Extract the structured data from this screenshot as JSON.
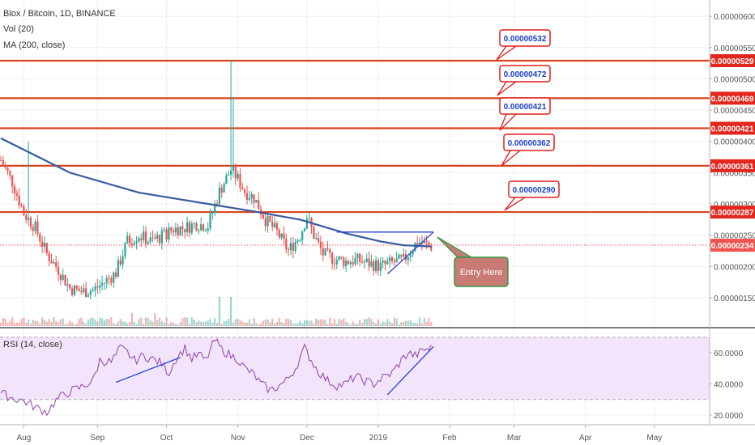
{
  "header": {
    "title": "Blox / Bitcoin, 1D, BINANCE",
    "vol_label": "Vol (20)",
    "ma_label": "MA (200, close)"
  },
  "rsi": {
    "label": "RSI (14, close)",
    "ticks": [
      "60.0000",
      "40.0000",
      "20.0000"
    ],
    "tick_values": [
      60,
      40,
      20
    ],
    "band_upper": 70,
    "band_lower": 30,
    "range": [
      17,
      75
    ]
  },
  "annotations": {
    "entry_label": "Entry Here",
    "callouts": [
      "0.00000532",
      "0.00000472",
      "0.00000421",
      "0.00000362",
      "0.00000290"
    ],
    "callout_values": [
      532,
      472,
      421,
      362,
      290
    ]
  },
  "price_axis": {
    "ticks": [
      "0.00000600",
      "0.00000550",
      "0.00000500",
      "0.00000450",
      "0.00000400",
      "0.00000350",
      "0.00000300",
      "0.00000250",
      "0.00000200",
      "0.00000150"
    ],
    "tick_values": [
      600,
      550,
      500,
      450,
      400,
      350,
      300,
      250,
      200,
      150
    ],
    "current_label": "0.00000234",
    "current_value": 234
  },
  "levels": {
    "labels": [
      "0.00000529",
      "0.00000469",
      "0.00000421",
      "0.00000361",
      "0.00000287"
    ],
    "values": [
      529,
      469,
      421,
      361,
      287
    ]
  },
  "time_axis": {
    "labels": [
      "Aug",
      "Sep",
      "Oct",
      "Nov",
      "Dec",
      "2019",
      "Feb",
      "Mar",
      "Apr",
      "May"
    ],
    "days": [
      10,
      42,
      72,
      103,
      133,
      164,
      195,
      223,
      254,
      284
    ]
  },
  "colors": {
    "up": "#26a69a",
    "down": "#ef5350",
    "ma": "#3a5aa0",
    "level": "#d9441f",
    "rsi_line": "#8e44ad",
    "rsi_band": "#f1e4fb",
    "trend": "#2a3fd6",
    "entry_box": "#c97a74",
    "entry_border": "#2e9b42",
    "callout_border": "#e21b1b"
  },
  "chart_data": {
    "type": "candlestick",
    "price_unit": "1e-8 BTC",
    "ylim": [
      130,
      620
    ],
    "x_unit": "days since Jul 1 2018",
    "xlim": [
      0,
      305
    ],
    "grid": true,
    "ma200": [
      [
        0,
        405
      ],
      [
        30,
        350
      ],
      [
        60,
        318
      ],
      [
        90,
        300
      ],
      [
        110,
        288
      ],
      [
        130,
        275
      ],
      [
        150,
        253
      ],
      [
        165,
        240
      ],
      [
        175,
        234
      ],
      [
        187,
        232
      ]
    ],
    "ohlc_keypoints": [
      [
        0,
        370
      ],
      [
        5,
        335
      ],
      [
        10,
        285
      ],
      [
        15,
        262
      ],
      [
        20,
        220
      ],
      [
        25,
        195
      ],
      [
        30,
        165
      ],
      [
        35,
        160
      ],
      [
        40,
        162
      ],
      [
        45,
        175
      ],
      [
        50,
        190
      ],
      [
        55,
        240
      ],
      [
        60,
        250
      ],
      [
        65,
        240
      ],
      [
        70,
        248
      ],
      [
        75,
        260
      ],
      [
        80,
        262
      ],
      [
        85,
        268
      ],
      [
        90,
        265
      ],
      [
        95,
        320
      ],
      [
        100,
        355
      ],
      [
        103,
        340
      ],
      [
        106,
        320
      ],
      [
        110,
        310
      ],
      [
        115,
        275
      ],
      [
        120,
        255
      ],
      [
        125,
        225
      ],
      [
        130,
        250
      ],
      [
        133,
        280
      ],
      [
        136,
        250
      ],
      [
        140,
        220
      ],
      [
        145,
        212
      ],
      [
        150,
        208
      ],
      [
        155,
        210
      ],
      [
        160,
        205
      ],
      [
        165,
        200
      ],
      [
        170,
        206
      ],
      [
        175,
        210
      ],
      [
        178,
        225
      ],
      [
        181,
        240
      ],
      [
        184,
        236
      ],
      [
        187,
        232
      ]
    ],
    "rsi_keypoints": [
      [
        0,
        34
      ],
      [
        5,
        31
      ],
      [
        10,
        29
      ],
      [
        15,
        25
      ],
      [
        20,
        22
      ],
      [
        25,
        31
      ],
      [
        30,
        35
      ],
      [
        35,
        38
      ],
      [
        40,
        42
      ],
      [
        43,
        55
      ],
      [
        48,
        54
      ],
      [
        52,
        63
      ],
      [
        55,
        60
      ],
      [
        58,
        55
      ],
      [
        62,
        58
      ],
      [
        66,
        56
      ],
      [
        70,
        53
      ],
      [
        73,
        47
      ],
      [
        76,
        56
      ],
      [
        80,
        63
      ],
      [
        83,
        56
      ],
      [
        86,
        59
      ],
      [
        89,
        55
      ],
      [
        93,
        68
      ],
      [
        96,
        62
      ],
      [
        100,
        58
      ],
      [
        103,
        56
      ],
      [
        106,
        50
      ],
      [
        110,
        46
      ],
      [
        113,
        40
      ],
      [
        117,
        36
      ],
      [
        120,
        38
      ],
      [
        124,
        42
      ],
      [
        128,
        50
      ],
      [
        132,
        63
      ],
      [
        135,
        55
      ],
      [
        138,
        48
      ],
      [
        142,
        42
      ],
      [
        146,
        39
      ],
      [
        150,
        40
      ],
      [
        154,
        45
      ],
      [
        158,
        42
      ],
      [
        162,
        40
      ],
      [
        166,
        44
      ],
      [
        170,
        47
      ],
      [
        174,
        55
      ],
      [
        177,
        60
      ],
      [
        180,
        58
      ],
      [
        184,
        62
      ],
      [
        187,
        63
      ]
    ],
    "trendlines": [
      {
        "pane": "price",
        "from": [
          146,
          255
        ],
        "to": [
          188,
          255
        ]
      },
      {
        "pane": "price",
        "from": [
          168,
          188
        ],
        "to": [
          188,
          255
        ]
      },
      {
        "pane": "rsi",
        "from": [
          50,
          41
        ],
        "to": [
          78,
          57
        ]
      },
      {
        "pane": "rsi",
        "from": [
          168,
          33
        ],
        "to": [
          188,
          64
        ]
      }
    ]
  }
}
